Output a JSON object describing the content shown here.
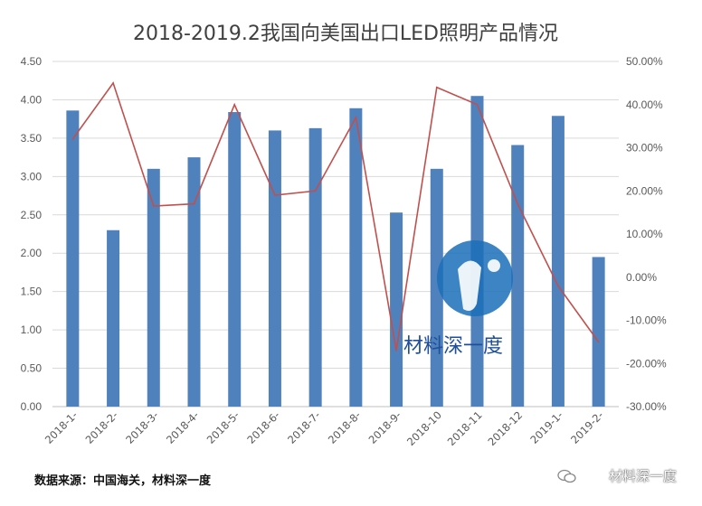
{
  "chart_data": {
    "type": "bar",
    "title": "2018-2019.2我国向美国出口LED照明产品情况",
    "categories": [
      "2018-1-",
      "2018-2-",
      "2018-3-",
      "2018-4-",
      "2018-5-",
      "2018-6-",
      "2018-7-",
      "2018-8-",
      "2018-9-",
      "2018-10",
      "2018-11",
      "2018-12",
      "2019-1-",
      "2019-2-"
    ],
    "series": [
      {
        "type": "bar",
        "axis": "left",
        "color": "#4f81bd",
        "values": [
          3.86,
          2.3,
          3.1,
          3.25,
          3.84,
          3.6,
          3.63,
          3.89,
          2.53,
          3.1,
          4.05,
          3.41,
          3.79,
          1.95
        ]
      },
      {
        "type": "line",
        "axis": "right",
        "color": "#c0504d",
        "values": [
          32.0,
          45.0,
          16.5,
          17.0,
          40.0,
          19.0,
          20.0,
          37.0,
          -17.0,
          44.0,
          40.0,
          17.0,
          -2.0,
          -15.0
        ]
      }
    ],
    "y_left": {
      "min": 0,
      "max": 4.5,
      "ticks": [
        "0.00",
        "0.50",
        "1.00",
        "1.50",
        "2.00",
        "2.50",
        "3.00",
        "3.50",
        "4.00",
        "4.50"
      ]
    },
    "y_right": {
      "min": -30,
      "max": 50,
      "ticks": [
        "-30.00%",
        "-20.00%",
        "-10.00%",
        "0.00%",
        "10.00%",
        "20.00%",
        "30.00%",
        "40.00%",
        "50.00%"
      ]
    },
    "grid": true,
    "legend": "none"
  },
  "watermark": {
    "text": "材料深一度"
  },
  "footer": {
    "source": "数据来源：中国海关，材料深一度",
    "account": "材料深一度"
  }
}
